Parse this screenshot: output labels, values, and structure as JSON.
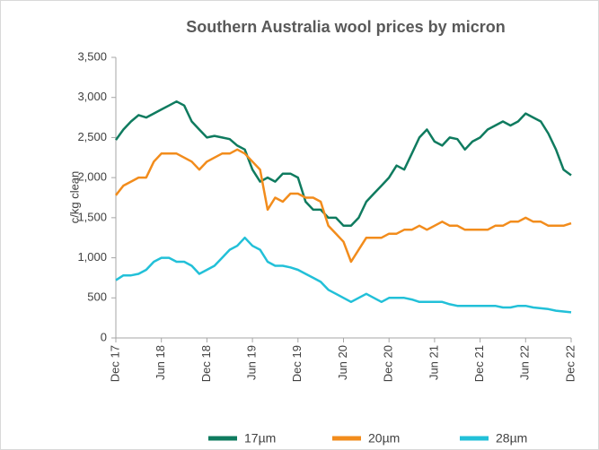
{
  "chart_data": {
    "type": "line",
    "title": "Southern Australia wool prices by micron",
    "y_label": "c/kg clean",
    "categories": [
      "Dec 17",
      null,
      null,
      null,
      null,
      null,
      "Jun 18",
      null,
      null,
      null,
      null,
      null,
      "Dec 18",
      null,
      null,
      null,
      null,
      null,
      "Jun 19",
      null,
      null,
      null,
      null,
      null,
      "Dec 19",
      null,
      null,
      null,
      null,
      null,
      "Jun 20",
      null,
      null,
      null,
      null,
      null,
      "Dec 20",
      null,
      null,
      null,
      null,
      null,
      "Jun 21",
      null,
      null,
      null,
      null,
      null,
      "Dec 21",
      null,
      null,
      null,
      null,
      null,
      "Jun 22",
      null,
      null,
      null,
      null,
      null,
      "Dec 22"
    ],
    "series": [
      {
        "name": "17µm",
        "color": "#0f7b5f",
        "values": [
          2470,
          2600,
          2700,
          2780,
          2750,
          2800,
          2850,
          2900,
          2950,
          2900,
          2700,
          2600,
          2500,
          2520,
          2500,
          2480,
          2400,
          2350,
          2100,
          1950,
          2000,
          1950,
          2050,
          2050,
          2000,
          1700,
          1600,
          1600,
          1500,
          1500,
          1400,
          1400,
          1500,
          1700,
          1800,
          1900,
          2000,
          2150,
          2100,
          2300,
          2500,
          2600,
          2450,
          2400,
          2500,
          2480,
          2350,
          2450,
          2500,
          2600,
          2650,
          2700,
          2650,
          2700,
          2800,
          2750,
          2700,
          2550,
          2350,
          2100,
          2030
        ]
      },
      {
        "name": "20µm",
        "color": "#f28c1c",
        "values": [
          1780,
          1900,
          1950,
          2000,
          2000,
          2200,
          2300,
          2300,
          2300,
          2250,
          2200,
          2100,
          2200,
          2250,
          2300,
          2300,
          2350,
          2300,
          2200,
          2100,
          1600,
          1750,
          1700,
          1800,
          1800,
          1750,
          1750,
          1700,
          1400,
          1300,
          1200,
          950,
          1100,
          1250,
          1250,
          1250,
          1300,
          1300,
          1350,
          1350,
          1400,
          1350,
          1400,
          1450,
          1400,
          1400,
          1350,
          1350,
          1350,
          1350,
          1400,
          1400,
          1450,
          1450,
          1500,
          1450,
          1450,
          1400,
          1400,
          1400,
          1430
        ]
      },
      {
        "name": "28µm",
        "color": "#22c0d8",
        "values": [
          720,
          780,
          780,
          800,
          850,
          950,
          1000,
          1000,
          950,
          950,
          900,
          800,
          850,
          900,
          1000,
          1100,
          1150,
          1250,
          1150,
          1100,
          950,
          900,
          900,
          880,
          850,
          800,
          750,
          700,
          600,
          550,
          500,
          450,
          500,
          550,
          500,
          450,
          500,
          500,
          500,
          480,
          450,
          450,
          450,
          450,
          420,
          400,
          400,
          400,
          400,
          400,
          400,
          380,
          380,
          400,
          400,
          380,
          370,
          360,
          340,
          330,
          320
        ]
      }
    ],
    "ylim": [
      0,
      3500
    ],
    "yticks": [
      0,
      500,
      {
        "value": 1000,
        "label": "1,000"
      },
      {
        "value": 1500,
        "label": "1,500"
      },
      {
        "value": 2000,
        "label": "2,000"
      },
      {
        "value": 2500,
        "label": "2,500"
      },
      {
        "value": 3000,
        "label": "3,000"
      },
      {
        "value": 3500,
        "label": "3,500"
      }
    ],
    "grid": false,
    "legend": "bottom"
  }
}
